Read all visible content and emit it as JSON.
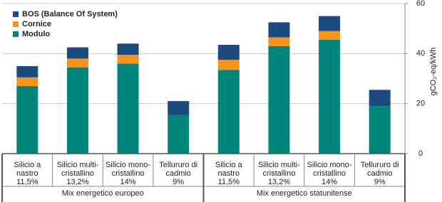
{
  "chart_data": {
    "type": "stacked_bar",
    "y_label": "gCO₂-eq/kWh",
    "categories": [
      [
        "Silicio a",
        "nastro",
        "11,5%"
      ],
      [
        "Silicio multi-",
        "cristallino",
        "13,2%"
      ],
      [
        "Silicio mono-",
        "cristallino",
        "14%"
      ],
      [
        "Tellururo di",
        "cadmio",
        "9%"
      ],
      [
        "Silicio a",
        "nastro",
        "11,5%"
      ],
      [
        "Silicio multi-",
        "cristallino",
        "13,2%"
      ],
      [
        "Silicio mono-",
        "cristallino",
        "14%"
      ],
      [
        "Tellururo di",
        "cadmio",
        "9%"
      ]
    ],
    "groups": [
      "Mix energetico europeo",
      "Mix energetico statunitense"
    ],
    "series": [
      {
        "name": "Modulo",
        "color": "#00857a",
        "values": [
          27,
          34.5,
          36,
          15.5,
          33.5,
          43,
          45.5,
          19
        ]
      },
      {
        "name": "Cornice",
        "color": "#f7941d",
        "values": [
          3.5,
          3.5,
          3.5,
          0,
          4,
          3.5,
          3.5,
          0
        ]
      },
      {
        "name": "BOS (Balance Of System)",
        "color": "#1c4a7e",
        "values": [
          4.5,
          4.5,
          4.5,
          5.5,
          6,
          6,
          6,
          6.5
        ]
      }
    ],
    "ylim": [
      0,
      60
    ],
    "yticks": [
      0,
      20,
      40,
      60
    ],
    "grid": true
  }
}
